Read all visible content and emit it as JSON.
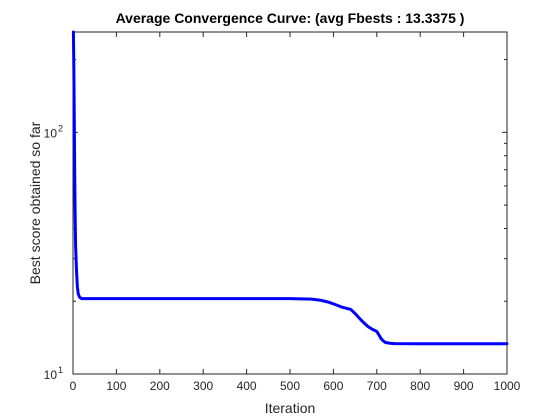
{
  "chart_data": {
    "type": "line",
    "title": "Average Convergence Curve: (avg Fbests : 13.3375 )",
    "xlabel": "Iteration",
    "ylabel": "Best score obtained so far",
    "xlim": [
      0,
      1000
    ],
    "ylim": [
      10,
      260
    ],
    "yscale": "log",
    "grid": false,
    "box": true,
    "series_color": "#0000ff",
    "x_ticks": [
      0,
      100,
      200,
      300,
      400,
      500,
      600,
      700,
      800,
      900,
      1000
    ],
    "x_tick_labels": [
      "0",
      "100",
      "200",
      "300",
      "400",
      "500",
      "600",
      "700",
      "800",
      "900",
      "1000"
    ],
    "y_major_ticks": [
      {
        "value": 10,
        "base": "10",
        "exp": "1"
      },
      {
        "value": 100,
        "base": "10",
        "exp": "2"
      }
    ],
    "y_minor_ticks": [
      20,
      30,
      40,
      50,
      60,
      70,
      80,
      90,
      200
    ],
    "series": [
      {
        "x": [
          1,
          2,
          3,
          4,
          5,
          6,
          8,
          10,
          12,
          15,
          20,
          30,
          100,
          200,
          300,
          400,
          500,
          550,
          570,
          580,
          590,
          600,
          610,
          620,
          630,
          640,
          650,
          660,
          670,
          680,
          690,
          700,
          705,
          710,
          715,
          720,
          730,
          740,
          800,
          900,
          1000
        ],
        "y": [
          260,
          180,
          110,
          65,
          45,
          34,
          27,
          23,
          21.5,
          20.8,
          20.5,
          20.5,
          20.5,
          20.5,
          20.5,
          20.5,
          20.5,
          20.4,
          20.2,
          20.0,
          19.8,
          19.5,
          19.2,
          18.9,
          18.7,
          18.5,
          17.8,
          17.0,
          16.3,
          15.7,
          15.3,
          15.0,
          14.5,
          14.0,
          13.7,
          13.5,
          13.4,
          13.35,
          13.34,
          13.34,
          13.34
        ]
      }
    ]
  }
}
